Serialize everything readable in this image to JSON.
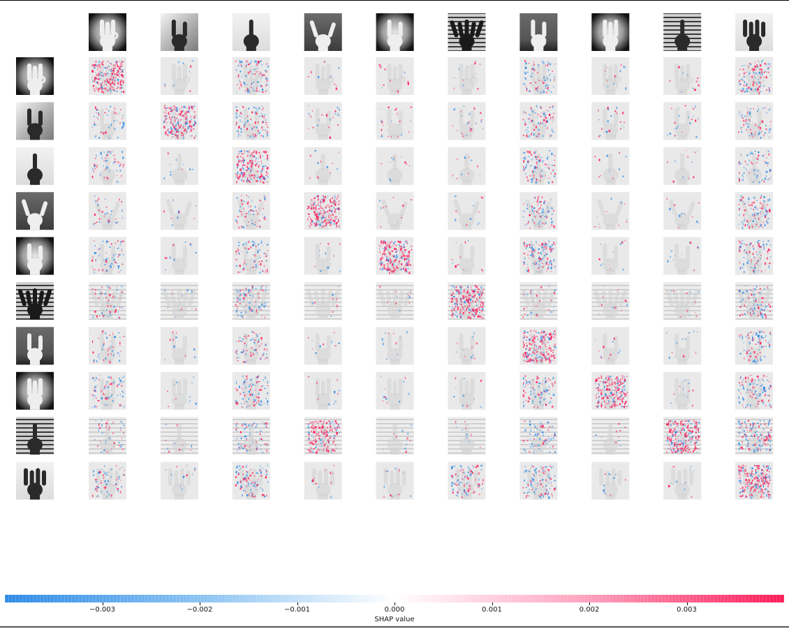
{
  "chart_data": {
    "type": "heatmap",
    "description_kind": "shap-image-plot",
    "columns": 10,
    "rows": 10,
    "row_images": [
      {
        "gesture": "three-fingers-ok",
        "bg": "dark-vignette"
      },
      {
        "gesture": "two-fingers",
        "bg": "window"
      },
      {
        "gesture": "one-finger",
        "bg": "light"
      },
      {
        "gesture": "rock-horns",
        "bg": "gray"
      },
      {
        "gesture": "peace",
        "bg": "dark-vignette"
      },
      {
        "gesture": "open-palm",
        "bg": "window-blinds"
      },
      {
        "gesture": "pinch",
        "bg": "room"
      },
      {
        "gesture": "three-fingers",
        "bg": "dark-vignette"
      },
      {
        "gesture": "fist-up",
        "bg": "window-blinds"
      },
      {
        "gesture": "four-fingers",
        "bg": "light"
      }
    ],
    "column_images": [
      {
        "gesture": "three-fingers-ok",
        "bg": "dark-vignette"
      },
      {
        "gesture": "two-fingers",
        "bg": "window"
      },
      {
        "gesture": "one-finger",
        "bg": "light"
      },
      {
        "gesture": "rock-horns",
        "bg": "gray"
      },
      {
        "gesture": "peace",
        "bg": "dark-vignette"
      },
      {
        "gesture": "open-palm",
        "bg": "window-blinds"
      },
      {
        "gesture": "pinch",
        "bg": "room"
      },
      {
        "gesture": "three-fingers",
        "bg": "dark-vignette"
      },
      {
        "gesture": "fist-up",
        "bg": "window-blinds"
      },
      {
        "gesture": "four-fingers",
        "bg": "light"
      }
    ],
    "shap_intensity": [
      [
        0.9,
        0.05,
        0.45,
        0.05,
        0.05,
        0.05,
        0.3,
        0.05,
        0.05,
        0.5
      ],
      [
        0.2,
        0.95,
        0.4,
        0.1,
        0.1,
        0.1,
        0.35,
        0.1,
        0.1,
        0.35
      ],
      [
        0.25,
        0.05,
        0.8,
        0.05,
        0.05,
        0.05,
        0.4,
        0.05,
        0.05,
        0.3
      ],
      [
        0.15,
        0.05,
        0.3,
        0.95,
        0.05,
        0.05,
        0.4,
        0.05,
        0.05,
        0.45
      ],
      [
        0.3,
        0.05,
        0.35,
        0.05,
        0.95,
        0.05,
        0.55,
        0.05,
        0.05,
        0.4
      ],
      [
        0.25,
        0.05,
        0.4,
        0.05,
        0.05,
        0.9,
        0.15,
        0.05,
        0.05,
        0.4
      ],
      [
        0.2,
        0.05,
        0.3,
        0.05,
        0.05,
        0.05,
        0.95,
        0.05,
        0.05,
        0.35
      ],
      [
        0.3,
        0.05,
        0.4,
        0.05,
        0.05,
        0.05,
        0.4,
        0.95,
        0.05,
        0.45
      ],
      [
        0.2,
        0.05,
        0.35,
        0.75,
        0.05,
        0.05,
        0.35,
        0.05,
        0.98,
        0.6
      ],
      [
        0.3,
        0.05,
        0.45,
        0.05,
        0.05,
        0.4,
        0.45,
        0.05,
        0.05,
        0.95
      ]
    ],
    "colorbar": {
      "label": "SHAP value",
      "range": [
        -0.004,
        0.004
      ],
      "low_color": "#2e8be6",
      "mid_color": "#ffffff",
      "high_color": "#ff1a58",
      "ticks": [
        {
          "value": -0.003,
          "label": "−0.003"
        },
        {
          "value": -0.002,
          "label": "−0.002"
        },
        {
          "value": -0.001,
          "label": "−0.001"
        },
        {
          "value": 0.0,
          "label": "0.000"
        },
        {
          "value": 0.001,
          "label": "0.001"
        },
        {
          "value": 0.002,
          "label": "0.002"
        },
        {
          "value": 0.003,
          "label": "0.003"
        }
      ]
    }
  }
}
